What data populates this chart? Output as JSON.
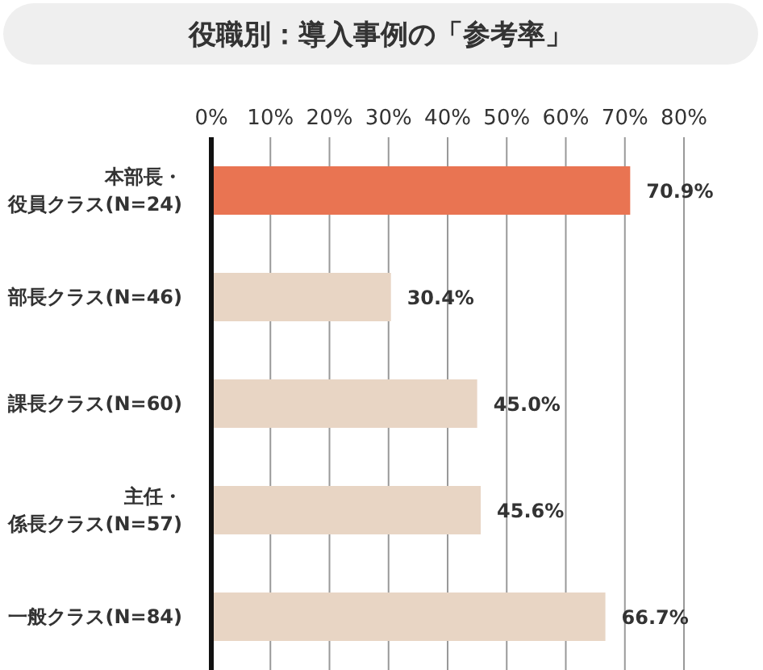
{
  "chart_data": {
    "type": "bar",
    "orientation": "horizontal",
    "title": "役職別：導入事例の「参考率」",
    "categories": [
      "本部長・役員クラス(N=24)",
      "部長クラス(N=46)",
      "課長クラス(N=60)",
      "主任・係長クラス(N=57)",
      "一般クラス(N=84)"
    ],
    "values": [
      70.9,
      30.4,
      45.0,
      45.6,
      66.7
    ],
    "value_labels": [
      "70.9%",
      "30.4%",
      "45.0%",
      "45.6%",
      "66.7%"
    ],
    "colors": [
      "#e97452",
      "#e8d5c4",
      "#e8d5c4",
      "#e8d5c4",
      "#e8d5c4"
    ],
    "xlim": [
      0,
      80
    ],
    "xticks": [
      {
        "value": 0,
        "label": "0%"
      },
      {
        "value": 10,
        "label": "10%"
      },
      {
        "value": 20,
        "label": "20%"
      },
      {
        "value": 30,
        "label": "30%"
      },
      {
        "value": 40,
        "label": "40%"
      },
      {
        "value": 50,
        "label": "50%"
      },
      {
        "value": 60,
        "label": "60%"
      },
      {
        "value": 70,
        "label": "70%"
      },
      {
        "value": 80,
        "label": "80%"
      }
    ],
    "grid": "x",
    "legend": false
  }
}
